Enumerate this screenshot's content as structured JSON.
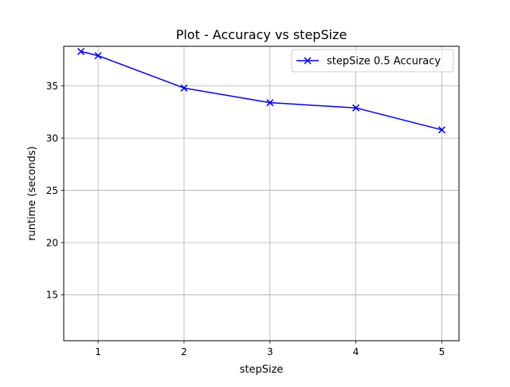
{
  "chart_data": {
    "type": "line",
    "title": "Plot - Accuracy vs stepSize",
    "xlabel": "stepSize",
    "ylabel": "runtime (seconds)",
    "xlim": [
      0.6,
      5.2
    ],
    "ylim": [
      10.6,
      38.8
    ],
    "xticks": [
      1,
      2,
      3,
      4,
      5
    ],
    "yticks": [
      15,
      20,
      25,
      30,
      35
    ],
    "grid": true,
    "legend": {
      "placement": "top-right"
    },
    "series": [
      {
        "name": "stepSize 0.5 Accuracy",
        "color": "#0000ff",
        "marker": "x",
        "x": [
          0.8,
          1.0,
          2.0,
          3.0,
          4.0,
          5.0
        ],
        "y": [
          38.3,
          37.9,
          34.8,
          33.4,
          32.9,
          30.8
        ]
      }
    ]
  }
}
